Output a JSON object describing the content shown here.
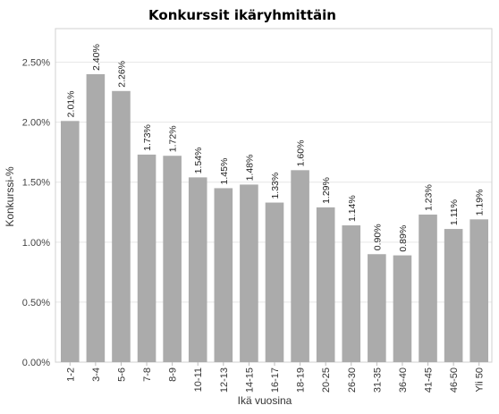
{
  "chart_data": {
    "type": "bar",
    "title": "Konkurssit ikäryhmittäin",
    "xlabel": "Ikä vuosina",
    "ylabel": "Konkurssi-%",
    "categories": [
      "1-2",
      "3-4",
      "5-6",
      "7-8",
      "8-9",
      "10-11",
      "12-13",
      "14-15",
      "16-17",
      "18-19",
      "20-25",
      "26-30",
      "31-35",
      "36-40",
      "41-45",
      "46-50",
      "Yli 50"
    ],
    "values": [
      2.01,
      2.4,
      2.26,
      1.73,
      1.72,
      1.54,
      1.45,
      1.48,
      1.33,
      1.6,
      1.29,
      1.14,
      0.9,
      0.89,
      1.23,
      1.11,
      1.19
    ],
    "value_labels": [
      "2.01%",
      "2.40%",
      "2.26%",
      "1.73%",
      "1.72%",
      "1.54%",
      "1.45%",
      "1.48%",
      "1.33%",
      "1.60%",
      "1.29%",
      "1.14%",
      "0.90%",
      "0.89%",
      "1.23%",
      "1.11%",
      "1.19%"
    ],
    "yticks": [
      0,
      0.5,
      1.0,
      1.5,
      2.0,
      2.5
    ],
    "ytick_labels": [
      "0.00%",
      "0.50%",
      "1.00%",
      "1.50%",
      "2.00%",
      "2.50%"
    ],
    "ylim": [
      0,
      2.78
    ],
    "grid": "horizontal",
    "legend": "none",
    "colors": {
      "bar": "#ababab",
      "grid": "#e6e6e6",
      "axis": "#bdbdbd"
    }
  }
}
